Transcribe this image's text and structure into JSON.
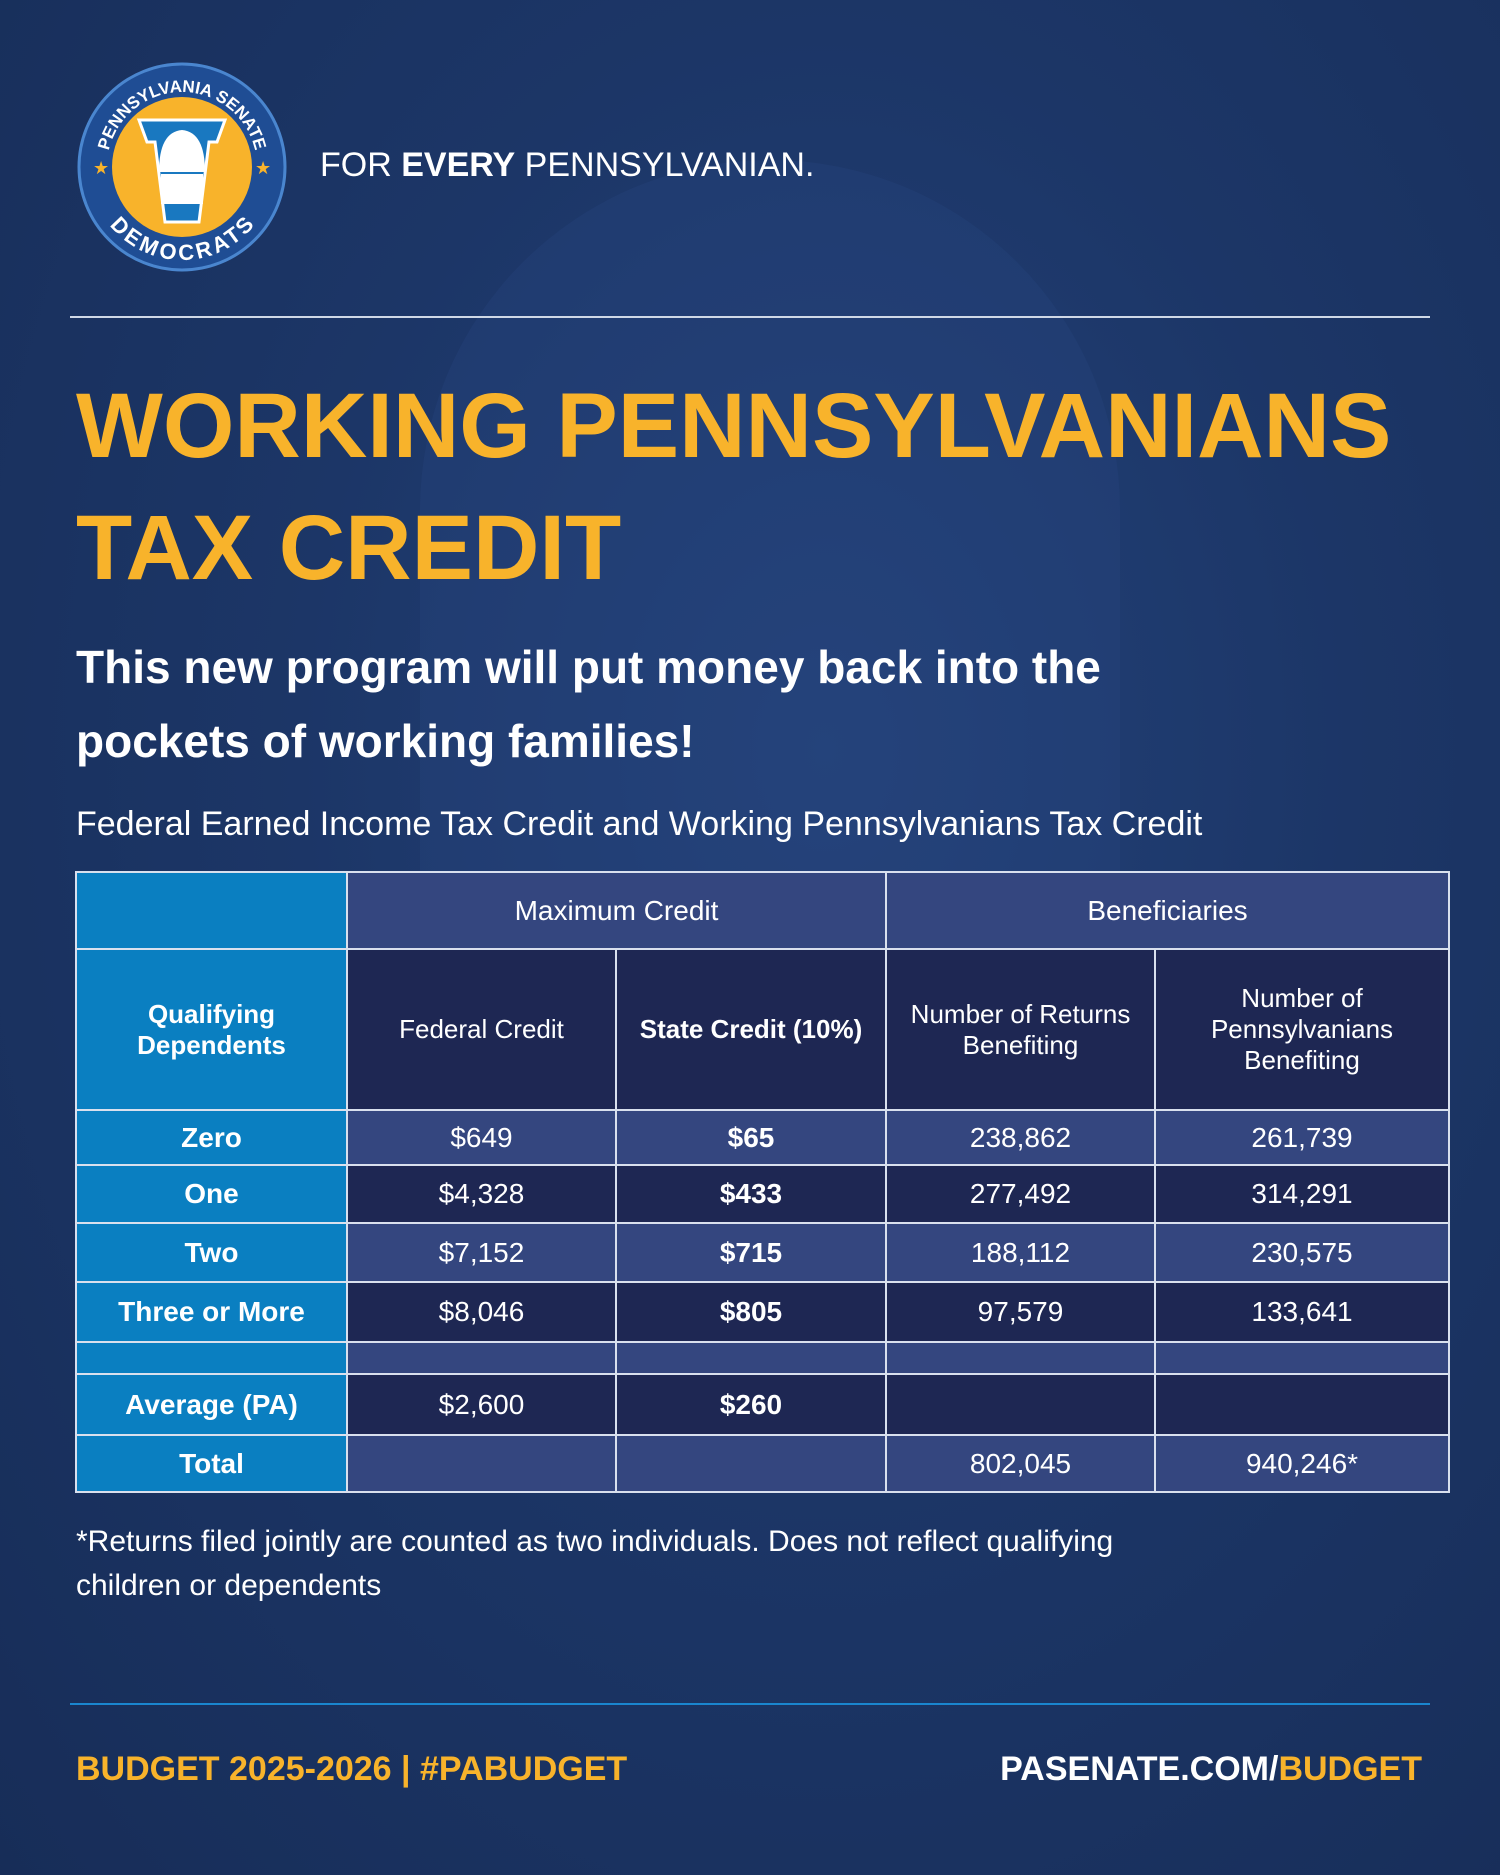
{
  "logo": {
    "top_text": "PENNSYLVANIA SENATE",
    "bottom_text": "DEMOCRATS"
  },
  "tagline": {
    "pre": "FOR ",
    "bold": "EVERY",
    "post": " PENNSYLVANIAN."
  },
  "title": {
    "line1": "WORKING PENNSYLVANIANS",
    "line2": "TAX CREDIT"
  },
  "subtitle": {
    "line1": "This new program will put money back into the",
    "line2": "pockets of working families!"
  },
  "table_title": "Federal Earned Income Tax Credit and Working Pennsylvanians Tax Credit",
  "table": {
    "group_headers": [
      "Maximum Credit",
      "Beneficiaries"
    ],
    "headers": [
      "Qualifying Dependents",
      "Federal Credit",
      "State Credit (10%)",
      "Number of Returns Benefiting",
      "Number of Pennsylvanians Benefiting"
    ],
    "rows": [
      [
        "Zero",
        "$649",
        "$65",
        "238,862",
        "261,739"
      ],
      [
        "One",
        "$4,328",
        "$433",
        "277,492",
        "314,291"
      ],
      [
        "Two",
        "$7,152",
        "$715",
        "188,112",
        "230,575"
      ],
      [
        "Three or More",
        "$8,046",
        "$805",
        "97,579",
        "133,641"
      ],
      [
        "",
        "",
        "",
        "",
        ""
      ],
      [
        "Average (PA)",
        "$2,600",
        "$260",
        "",
        ""
      ],
      [
        "Total",
        "",
        "",
        "802,045",
        "940,246*"
      ]
    ]
  },
  "footnote": {
    "line1": "*Returns filed jointly are counted as two individuals. Does not reflect qualifying",
    "line2": "children or dependents"
  },
  "footer": {
    "budget": "BUDGET 2025-2026 | #PABUDGET",
    "site_pre": "PASENATE.COM/",
    "site_post": "BUDGET"
  },
  "colors": {
    "background": "#1a3363",
    "accent": "#f8b32b",
    "light_blue": "#0a7fc1",
    "mid_blue": "#34467f",
    "dark_blue": "#1e2753"
  }
}
